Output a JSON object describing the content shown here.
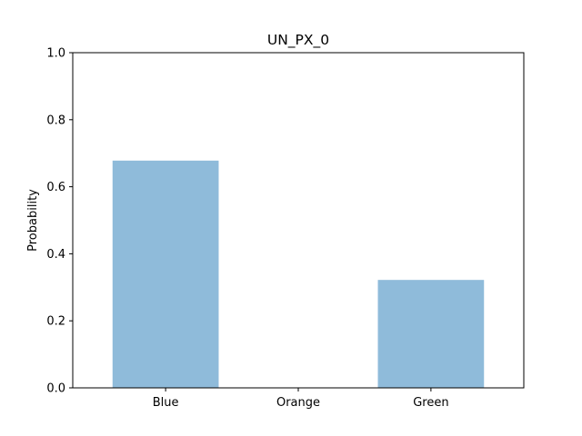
{
  "chart_data": {
    "type": "bar",
    "title": "UN_PX_0",
    "xlabel": "",
    "ylabel": "Probability",
    "categories": [
      "Blue",
      "Orange",
      "Green"
    ],
    "values": [
      0.678,
      0.0,
      0.322
    ],
    "ylim": [
      0,
      1.0
    ],
    "yticks": [
      "0.0",
      "0.2",
      "0.4",
      "0.6",
      "0.8",
      "1.0"
    ],
    "bar_color": "#8fbbda",
    "grid": false,
    "legend": "none"
  }
}
